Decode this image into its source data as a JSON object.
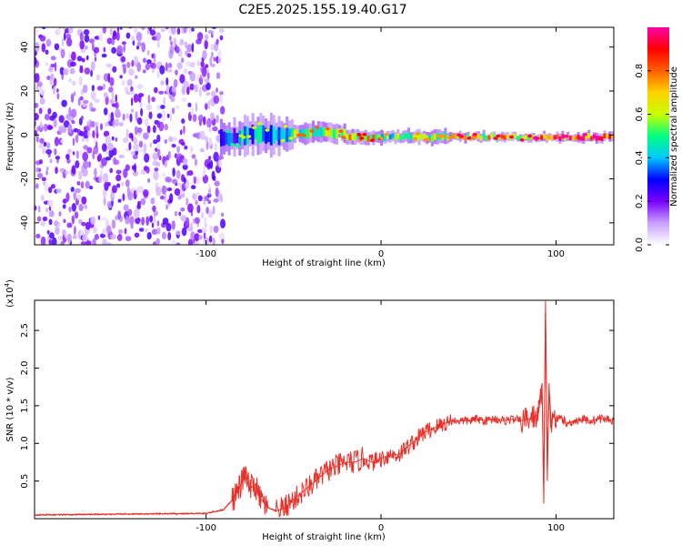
{
  "title": "C2E5.2025.155.19.40.G17",
  "chart_data": [
    {
      "type": "heatmap",
      "xlabel": "Height of straight line (km)",
      "ylabel": "Frequency (Hz)",
      "xlim": [
        -198,
        133
      ],
      "ylim": [
        -50,
        49
      ],
      "xticks": [
        -100,
        0,
        100
      ],
      "yticks": [
        -40,
        -20,
        0,
        20,
        40
      ],
      "colorbar": {
        "label": "Normalized spectral amplitude",
        "range": [
          0,
          1
        ],
        "ticks": [
          0.0,
          0.2,
          0.4,
          0.6,
          0.8
        ],
        "colors": [
          "#ffffff",
          "#c8a0ff",
          "#7a00ff",
          "#0000ff",
          "#00c8ff",
          "#00ff80",
          "#c8ff00",
          "#ffd200",
          "#ff6000",
          "#ff0000",
          "#ff00aa"
        ]
      },
      "regions": [
        {
          "x": [
            -198,
            -92
          ],
          "description_level": "noise",
          "y_span": [
            -50,
            49
          ],
          "amplitude": 0.1
        },
        {
          "x": [
            -92,
            -80
          ],
          "center_freq": -1,
          "half_width": 7,
          "amplitude": 0.35
        },
        {
          "x": [
            -80,
            -50
          ],
          "center_freq": 0,
          "half_width": 8,
          "amplitude": 0.45
        },
        {
          "x": [
            -50,
            -20
          ],
          "center_freq": 1,
          "half_width": 4,
          "amplitude": 0.65
        },
        {
          "x": [
            -20,
            0
          ],
          "center_freq": -1,
          "half_width": 3,
          "amplitude": 0.75
        },
        {
          "x": [
            0,
            40
          ],
          "center_freq": -1,
          "half_width": 3,
          "amplitude": 0.6
        },
        {
          "x": [
            40,
            88
          ],
          "center_freq": -1,
          "half_width": 2,
          "amplitude": 0.8
        },
        {
          "x": [
            88,
            133
          ],
          "center_freq": -1,
          "half_width": 2,
          "amplitude": 0.95
        }
      ]
    },
    {
      "type": "line",
      "xlabel": "Height of straight line (km)",
      "ylabel": "SNR (10 * v/v)",
      "yscale_label": "(x10",
      "yscale_exp": "4",
      "xlim": [
        -198,
        133
      ],
      "ylim": [
        0,
        2.9
      ],
      "xticks": [
        -100,
        0,
        100
      ],
      "yticks": [
        0.5,
        1.0,
        1.5,
        2.0,
        2.5
      ],
      "series": [
        {
          "color": "#e8302a",
          "x": [
            -198,
            -150,
            -100,
            -90,
            -85,
            -80,
            -78,
            -75,
            -72,
            -70,
            -65,
            -60,
            -55,
            -50,
            -45,
            -40,
            -35,
            -30,
            -25,
            -20,
            -15,
            -10,
            -5,
            0,
            5,
            10,
            15,
            20,
            25,
            30,
            35,
            40,
            45,
            50,
            55,
            60,
            65,
            70,
            75,
            80,
            85,
            88,
            90,
            92,
            93,
            94,
            95,
            96,
            97,
            98,
            100,
            103,
            106,
            110,
            115,
            120,
            125,
            130,
            133
          ],
          "y": [
            0.05,
            0.06,
            0.07,
            0.12,
            0.25,
            0.45,
            0.6,
            0.4,
            0.45,
            0.3,
            0.15,
            0.1,
            0.15,
            0.25,
            0.35,
            0.45,
            0.55,
            0.65,
            0.7,
            0.75,
            0.75,
            0.8,
            0.75,
            0.8,
            0.85,
            0.85,
            0.95,
            1.05,
            1.15,
            1.2,
            1.25,
            1.3,
            1.3,
            1.3,
            1.32,
            1.3,
            1.33,
            1.3,
            1.32,
            1.3,
            1.33,
            1.35,
            1.4,
            1.8,
            0.2,
            2.9,
            0.5,
            1.8,
            1.2,
            1.4,
            1.3,
            1.35,
            1.25,
            1.3,
            1.32,
            1.3,
            1.33,
            1.32,
            1.3
          ]
        }
      ]
    }
  ]
}
